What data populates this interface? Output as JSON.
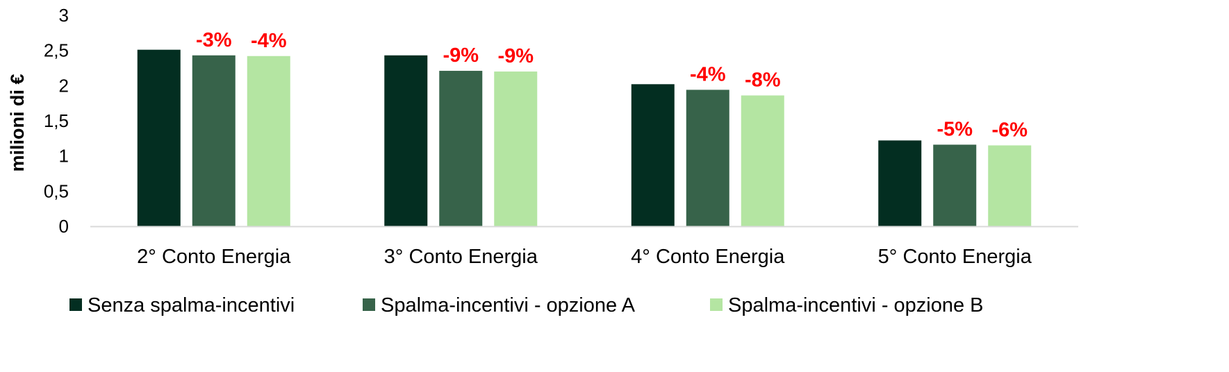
{
  "chart_data": {
    "type": "bar",
    "ylabel": "milioni di €",
    "xlabel": "",
    "ylim": [
      0,
      3
    ],
    "yticks": [
      0,
      0.5,
      1,
      1.5,
      2,
      2.5,
      3
    ],
    "ytick_labels": [
      "0",
      "0,5",
      "1",
      "1,5",
      "2",
      "2,5",
      "3"
    ],
    "grid": false,
    "legend_position": "bottom",
    "categories": [
      "2° Conto Energia",
      "3° Conto Energia",
      "4° Conto Energia",
      "5° Conto Energia"
    ],
    "series": [
      {
        "name": "Senza spalma-incentivi",
        "color": "#032e21",
        "values": [
          2.51,
          2.43,
          2.02,
          1.22
        ],
        "labels": [
          "",
          "",
          "",
          ""
        ]
      },
      {
        "name": "Spalma-incentivi - opzione A",
        "color": "#37634a",
        "values": [
          2.43,
          2.21,
          1.94,
          1.16
        ],
        "labels": [
          "-3%",
          "-9%",
          "-4%",
          "-5%"
        ]
      },
      {
        "name": "Spalma-incentivi - opzione B",
        "color": "#b4e5a2",
        "values": [
          2.42,
          2.2,
          1.86,
          1.15
        ],
        "labels": [
          "-4%",
          "-9%",
          "-8%",
          "-6%"
        ]
      }
    ],
    "label_color": "#ff0000",
    "axis_color": "#d9d9d9"
  }
}
